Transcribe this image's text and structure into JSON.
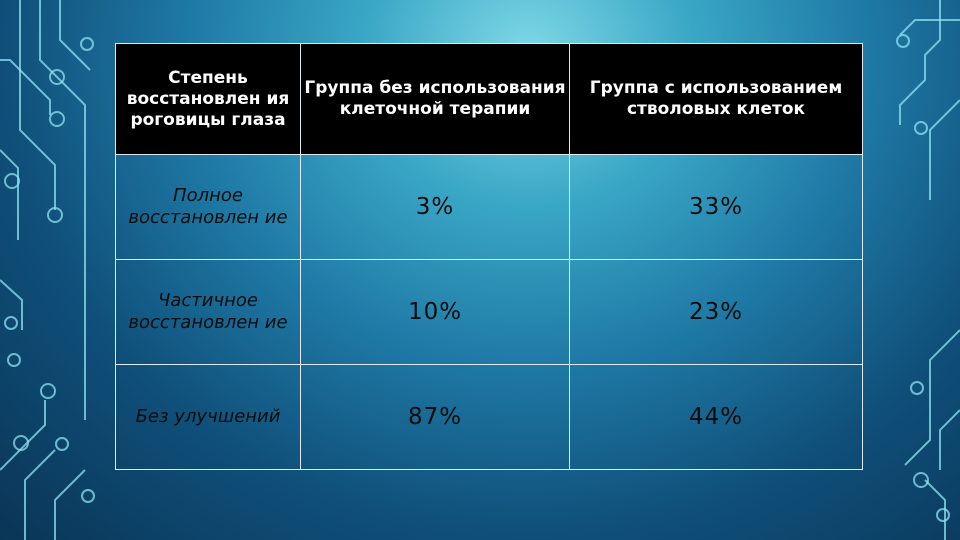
{
  "table": {
    "headers": [
      "Степень восстановлен ия роговицы глаза",
      "Группа без использования клеточной терапии",
      "Группа с использованием стволовых клеток"
    ],
    "rows": [
      {
        "label": "Полное восстановлен ие",
        "without_therapy": "3%",
        "with_stem_cells": "33%"
      },
      {
        "label": "Частичное восстановлен ие",
        "without_therapy": "10%",
        "with_stem_cells": "23%"
      },
      {
        "label": "Без улучшений",
        "without_therapy": "87%",
        "with_stem_cells": "44%"
      }
    ]
  }
}
